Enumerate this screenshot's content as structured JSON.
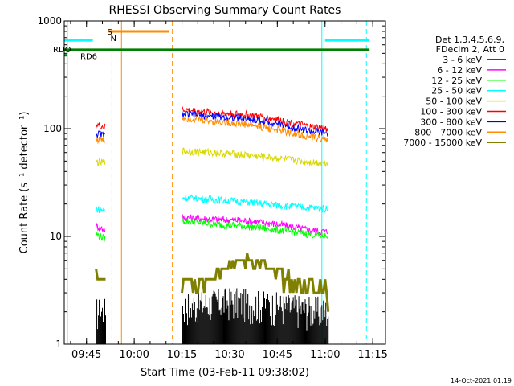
{
  "chart_data": {
    "type": "line",
    "title": "RHESSI Observing Summary Count Rates",
    "xlabel": "Start Time (03-Feb-11 09:38:02)",
    "ylabel": "Count Rate (s⁻¹ detector⁻¹)",
    "yscale": "log",
    "ylim": [
      1,
      1000
    ],
    "xlim": [
      "09:38",
      "11:19"
    ],
    "x_ticks": [
      "09:45",
      "10:00",
      "10:15",
      "10:30",
      "10:45",
      "11:00",
      "11:15"
    ],
    "y_ticks": [
      "1",
      "10",
      "100",
      "1000"
    ],
    "grid": false,
    "legend_position": "right",
    "legend_header": [
      "Det 1,3,4,5,6,9,",
      "FDecim 2, Att 0"
    ],
    "footer_date": "14-Oct-2021 01:19",
    "segments": [
      [
        "09:48",
        "09:51"
      ],
      [
        "10:15",
        "11:01"
      ]
    ],
    "series": [
      {
        "name": "3 - 6 keV",
        "color": "#000000",
        "style": "noise",
        "points": [
          [
            "09:48",
            1.6
          ],
          [
            "09:51",
            1.6
          ],
          [
            "10:15",
            1.8
          ],
          [
            "10:30",
            2.0
          ],
          [
            "10:45",
            1.8
          ],
          [
            "11:01",
            1.6
          ]
        ]
      },
      {
        "name": "6 - 12 keV",
        "color": "#ff00ff",
        "points": [
          [
            "09:48",
            12.5
          ],
          [
            "09:51",
            11.5
          ],
          [
            "10:15",
            15
          ],
          [
            "10:25",
            14.5
          ],
          [
            "10:35",
            14
          ],
          [
            "10:45",
            13
          ],
          [
            "10:55",
            11.5
          ],
          [
            "11:01",
            11
          ]
        ]
      },
      {
        "name": "12 - 25 keV",
        "color": "#00ff00",
        "points": [
          [
            "09:48",
            10.5
          ],
          [
            "09:51",
            9.5
          ],
          [
            "10:15",
            14
          ],
          [
            "10:25",
            13
          ],
          [
            "10:35",
            12.5
          ],
          [
            "10:45",
            11.5
          ],
          [
            "10:55",
            10.5
          ],
          [
            "11:01",
            10
          ]
        ]
      },
      {
        "name": "25 - 50 keV",
        "color": "#00ffff",
        "points": [
          [
            "09:48",
            18
          ],
          [
            "09:51",
            17.5
          ],
          [
            "10:15",
            23
          ],
          [
            "10:25",
            22
          ],
          [
            "10:35",
            21
          ],
          [
            "10:45",
            19.5
          ],
          [
            "10:55",
            18.5
          ],
          [
            "11:01",
            18
          ]
        ]
      },
      {
        "name": "50 - 100 keV",
        "color": "#d8d800",
        "points": [
          [
            "09:48",
            49
          ],
          [
            "09:51",
            48
          ],
          [
            "10:15",
            62
          ],
          [
            "10:25",
            60
          ],
          [
            "10:35",
            57
          ],
          [
            "10:45",
            53
          ],
          [
            "10:55",
            49
          ],
          [
            "11:01",
            48
          ]
        ]
      },
      {
        "name": "100 - 300 keV",
        "color": "#ff0000",
        "points": [
          [
            "09:48",
            108
          ],
          [
            "09:51",
            103
          ],
          [
            "10:15",
            150
          ],
          [
            "10:25",
            140
          ],
          [
            "10:35",
            135
          ],
          [
            "10:45",
            122
          ],
          [
            "10:55",
            104
          ],
          [
            "11:01",
            100
          ]
        ]
      },
      {
        "name": "300 - 800 keV",
        "color": "#0000ff",
        "points": [
          [
            "09:48",
            90
          ],
          [
            "09:51",
            87
          ],
          [
            "10:15",
            137
          ],
          [
            "10:25",
            130
          ],
          [
            "10:35",
            124
          ],
          [
            "10:45",
            112
          ],
          [
            "10:55",
            95
          ],
          [
            "11:01",
            90
          ]
        ]
      },
      {
        "name": "800 - 7000 keV",
        "color": "#ff8c00",
        "points": [
          [
            "09:48",
            80
          ],
          [
            "09:51",
            78
          ],
          [
            "10:15",
            127
          ],
          [
            "10:25",
            117
          ],
          [
            "10:35",
            110
          ],
          [
            "10:45",
            98
          ],
          [
            "10:55",
            84
          ],
          [
            "11:01",
            80
          ]
        ]
      },
      {
        "name": "7000 - 15000 keV",
        "color": "#808000",
        "style": "steps",
        "points": [
          [
            "09:48",
            4.5
          ],
          [
            "09:51",
            3.5
          ],
          [
            "10:15",
            3.5
          ],
          [
            "10:22",
            4.0
          ],
          [
            "10:30",
            5.5
          ],
          [
            "10:37",
            6.0
          ],
          [
            "10:45",
            4.5
          ],
          [
            "10:52",
            3.5
          ],
          [
            "11:01",
            3.0
          ]
        ]
      }
    ],
    "annotations": [
      {
        "type": "hline",
        "label": "RDO",
        "color": "#008000",
        "x": [
          "09:38",
          "11:14"
        ],
        "y": 540
      },
      {
        "type": "hline",
        "label": "RD6",
        "color": "#008000",
        "x": [
          "09:38",
          "09:39"
        ],
        "y": 480
      },
      {
        "type": "hline",
        "label": "",
        "color": "#00ffff",
        "x": [
          "09:38",
          "09:47"
        ],
        "y": 660
      },
      {
        "type": "hline",
        "label": "",
        "color": "#00ffff",
        "x": [
          "11:00",
          "11:14"
        ],
        "y": 660
      },
      {
        "type": "hline",
        "label": "",
        "color": "#ff8c00",
        "x": [
          "09:52",
          "10:11"
        ],
        "y": 800
      },
      {
        "type": "marker",
        "label": "S",
        "color": "#ff8c00",
        "x": "09:51"
      },
      {
        "type": "marker",
        "label": "N",
        "color": "#00ffff",
        "x": "09:52"
      }
    ],
    "vlines": [
      {
        "x": "09:39",
        "color": "#00ffff",
        "style": "solid"
      },
      {
        "x": "09:53",
        "color": "#00ffff",
        "style": "dashed"
      },
      {
        "x": "09:56",
        "color": "#ff8c00",
        "style": "solid"
      },
      {
        "x": "10:12",
        "color": "#ff8c00",
        "style": "dashed"
      },
      {
        "x": "10:59",
        "color": "#00ffff",
        "style": "solid"
      },
      {
        "x": "11:13",
        "color": "#00ffff",
        "style": "dashed"
      }
    ]
  }
}
